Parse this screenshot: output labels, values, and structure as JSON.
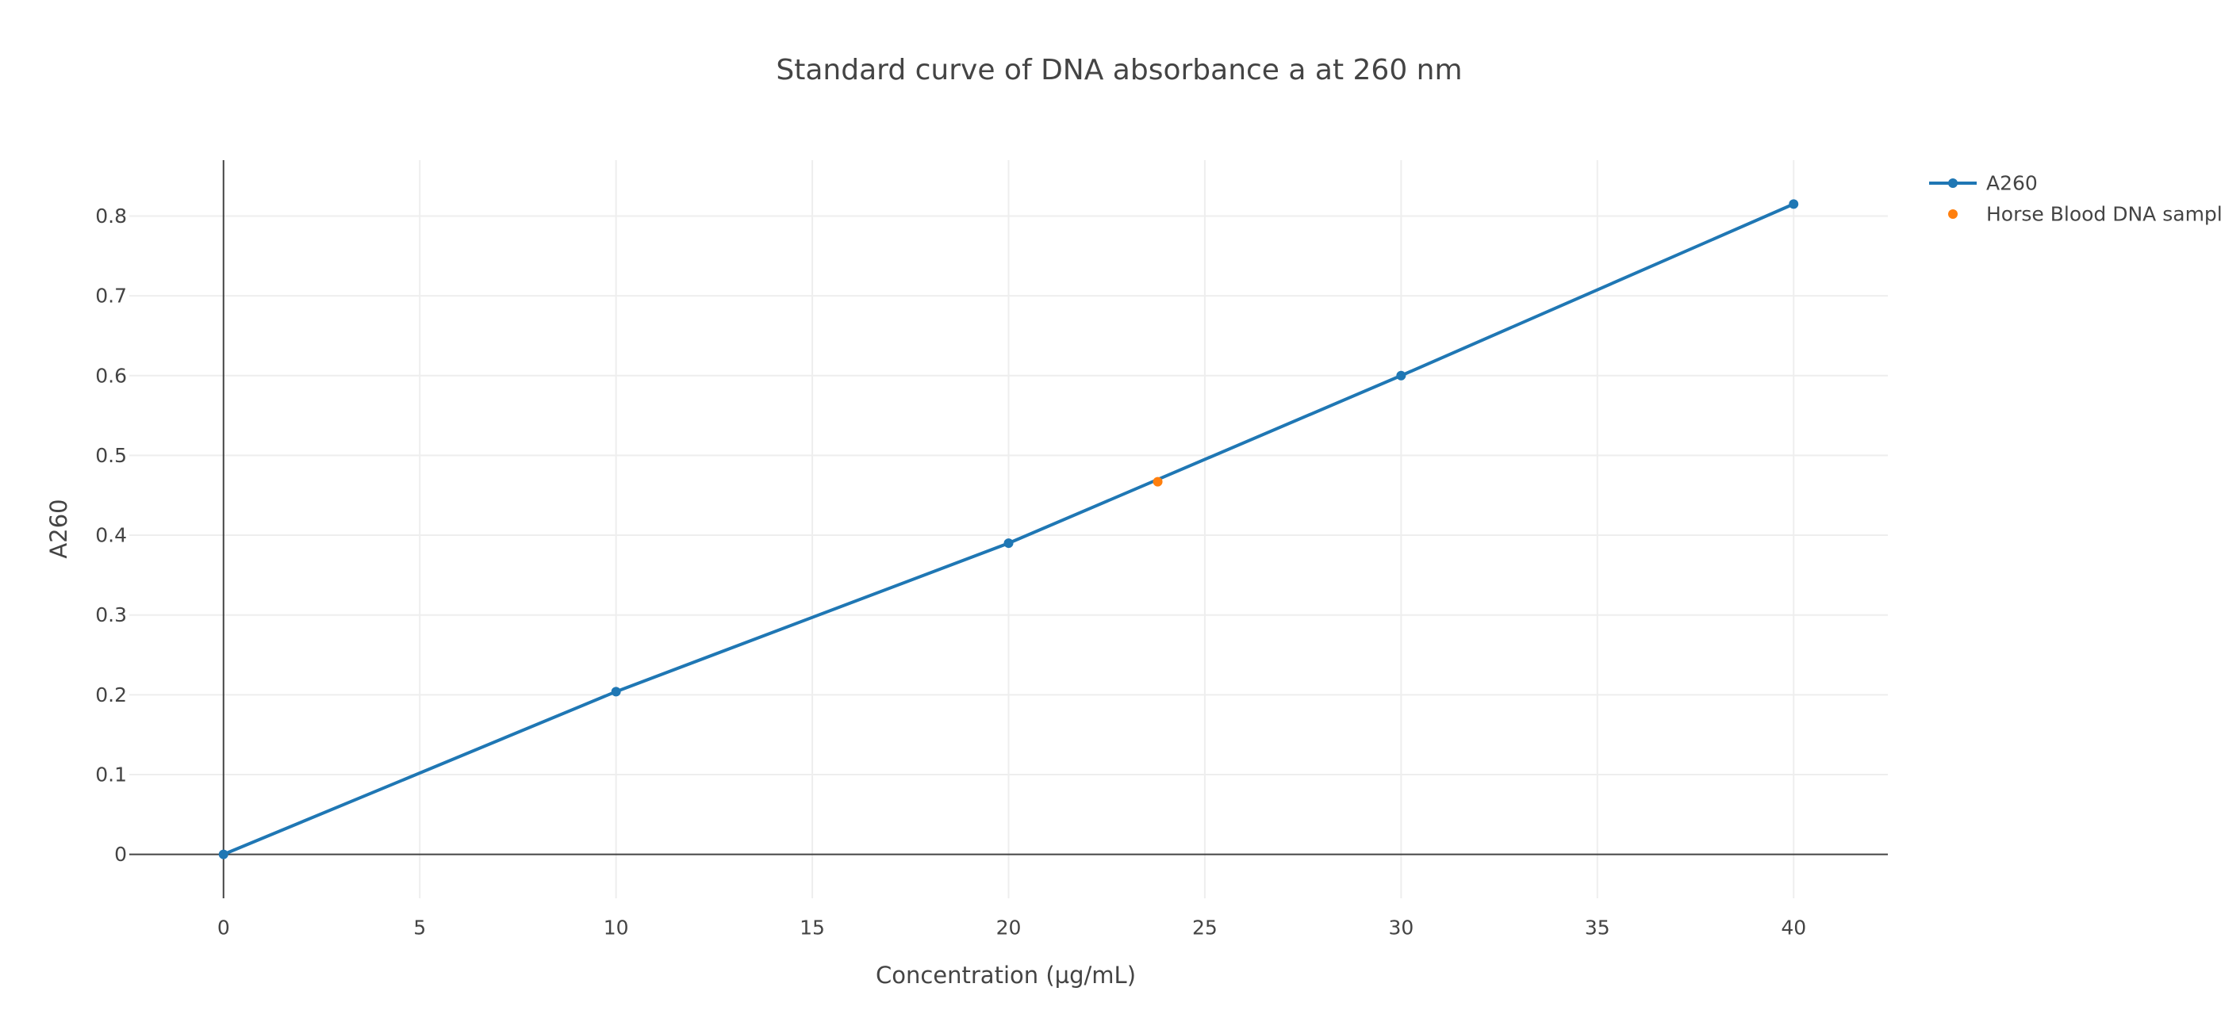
{
  "chart_data": {
    "type": "line",
    "title": "Standard curve of DNA absorbance a at 260 nm",
    "xlabel": "Concentration (µg/mL)",
    "ylabel": "A260",
    "xlim": [
      -2.4,
      42.4
    ],
    "ylim": [
      -0.055,
      0.87
    ],
    "x_ticks": [
      0,
      5,
      10,
      15,
      20,
      25,
      30,
      35,
      40
    ],
    "y_ticks": [
      0,
      0.1,
      0.2,
      0.3,
      0.4,
      0.5,
      0.6,
      0.7,
      0.8
    ],
    "grid": true,
    "legend_position": "top-right",
    "series": [
      {
        "name": "A260",
        "mode": "lines+markers",
        "color": "#1f77b4",
        "x": [
          0,
          10,
          20,
          30,
          40
        ],
        "y": [
          0,
          0.204,
          0.39,
          0.6,
          0.815
        ]
      },
      {
        "name": "Horse Blood DNA sample",
        "mode": "markers",
        "color": "#ff7f0e",
        "x": [
          23.8
        ],
        "y": [
          0.467
        ]
      }
    ]
  }
}
